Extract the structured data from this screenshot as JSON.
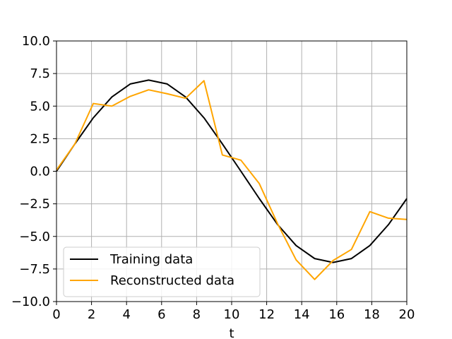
{
  "chart_data": {
    "type": "line",
    "title": "",
    "xlabel": "t",
    "ylabel": "",
    "xlim": [
      0,
      20
    ],
    "ylim": [
      -10,
      10
    ],
    "xticks": [
      0,
      2,
      4,
      6,
      8,
      10,
      12,
      14,
      16,
      18,
      20
    ],
    "yticks": [
      -10.0,
      -7.5,
      -5.0,
      -2.5,
      0.0,
      2.5,
      5.0,
      7.5,
      10.0
    ],
    "ytick_labels": [
      "−10.0",
      "−7.5",
      "−5.0",
      "−2.5",
      "0.0",
      "2.5",
      "5.0",
      "7.5",
      "10.0"
    ],
    "grid": true,
    "legend_position": "lower-left",
    "series": [
      {
        "name": "Training data",
        "color": "#000000",
        "x": [
          0,
          1.05,
          2.1,
          3.16,
          4.21,
          5.26,
          6.32,
          7.37,
          8.42,
          9.47,
          10.53,
          11.58,
          12.63,
          13.68,
          14.74,
          15.79,
          16.84,
          17.89,
          18.95,
          20.0
        ],
        "y": [
          0.0,
          2.1,
          4.1,
          5.7,
          6.7,
          7.0,
          6.7,
          5.7,
          4.1,
          2.1,
          0.0,
          -2.1,
          -4.1,
          -5.7,
          -6.7,
          -7.0,
          -6.7,
          -5.7,
          -4.1,
          -2.1
        ]
      },
      {
        "name": "Reconstructed data",
        "color": "#ffa500",
        "x": [
          0,
          1.05,
          2.1,
          3.16,
          4.21,
          5.26,
          6.32,
          7.37,
          8.42,
          9.47,
          10.53,
          11.58,
          12.63,
          13.68,
          14.74,
          15.79,
          16.84,
          17.89,
          18.95,
          20.0
        ],
        "y": [
          0.1,
          2.1,
          5.2,
          5.0,
          5.75,
          6.25,
          5.95,
          5.6,
          6.95,
          1.25,
          0.85,
          -0.95,
          -4.05,
          -6.8,
          -8.3,
          -6.85,
          -6.0,
          -3.1,
          -3.6,
          -3.7
        ]
      }
    ]
  }
}
